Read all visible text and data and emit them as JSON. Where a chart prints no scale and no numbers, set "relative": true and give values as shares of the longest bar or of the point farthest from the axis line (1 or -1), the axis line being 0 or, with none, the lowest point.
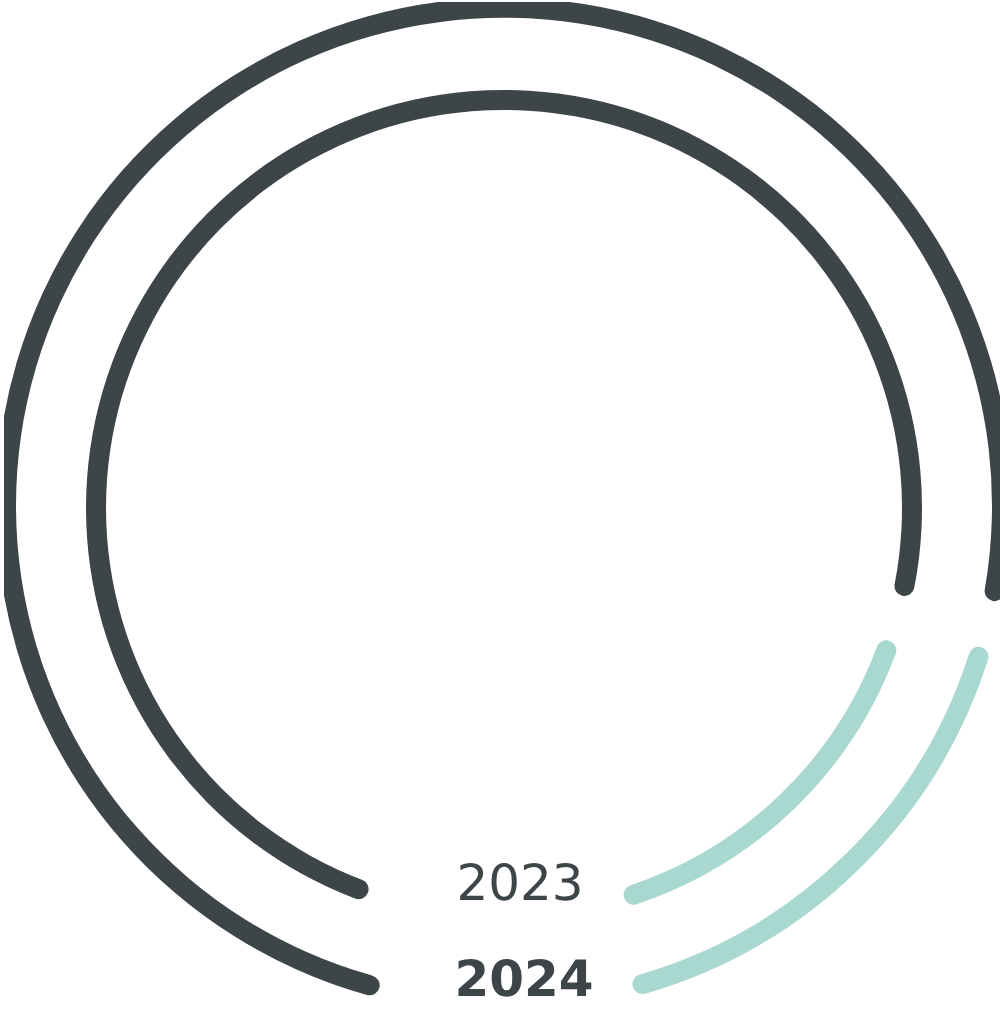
{
  "chart_data": {
    "type": "donut",
    "relative": true,
    "categories": [
      null,
      null
    ],
    "colors": [
      "#3d4549",
      "#a8d8cf"
    ],
    "legend": false,
    "series": [
      {
        "name": "2024",
        "values": [
          82,
          18
        ]
      },
      {
        "name": "2023",
        "values": [
          83,
          17
        ]
      }
    ]
  }
}
